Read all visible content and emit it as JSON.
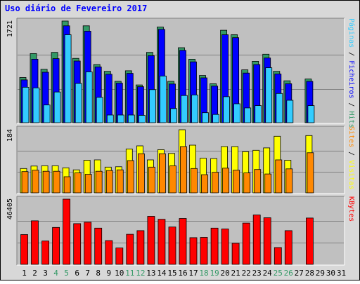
{
  "chart_data": {
    "type": "bar",
    "title": "Uso diário de Fevereiro 2017",
    "days": [
      "1",
      "2",
      "3",
      "4",
      "5",
      "6",
      "7",
      "8",
      "9",
      "10",
      "11",
      "12",
      "13",
      "14",
      "15",
      "16",
      "17",
      "18",
      "19",
      "20",
      "21",
      "22",
      "23",
      "24",
      "25",
      "26",
      "27",
      "28",
      "29",
      "30",
      "31"
    ],
    "weekend_days": [
      "4",
      "5",
      "11",
      "12",
      "18",
      "19",
      "25",
      "26"
    ],
    "colors": {
      "title": "#0000ff",
      "weekday_label": "#000000",
      "weekend_label": "#339966",
      "hits": "#339966",
      "files": "#0000ff",
      "pages": "#33ccff",
      "visits": "#ffff00",
      "sites": "#ff8800",
      "kbytes": "#ff0000",
      "plot_bg": "#c0c0c0",
      "frame_bg": "#d8d8d8"
    },
    "panels": [
      {
        "id": "top",
        "max_label": "1721",
        "ylim": [
          0,
          1721
        ],
        "legend": [
          {
            "text": "Páginas",
            "color": "#33ccff"
          },
          {
            "text": " / ",
            "color": "#000000"
          },
          {
            "text": "Ficheiros",
            "color": "#0000ff"
          },
          {
            "text": " / ",
            "color": "#000000"
          },
          {
            "text": "Hits",
            "color": "#339966"
          }
        ],
        "series": [
          {
            "name": "Hits",
            "color": "#339966",
            "values": [
              765,
              1170,
              905,
              1190,
              1721,
              1090,
              1640,
              985,
              870,
              700,
              880,
              640,
              1190,
              1620,
              700,
              1270,
              1075,
              800,
              660,
              1565,
              1490,
              895,
              1040,
              1160,
              870,
              710,
              0,
              740,
              0,
              0,
              0
            ]
          },
          {
            "name": "Ficheiros",
            "color": "#0000ff",
            "values": [
              725,
              1075,
              855,
              1085,
              1640,
              1045,
              1550,
              945,
              820,
              670,
              835,
              610,
              1135,
              1580,
              655,
              1225,
              1030,
              760,
              620,
              1490,
              1440,
              840,
              985,
              1095,
              825,
              660,
              0,
              700,
              0,
              0,
              0
            ]
          },
          {
            "name": "Páginas",
            "color": "#33ccff",
            "values": [
              600,
              590,
              300,
              520,
              1490,
              665,
              860,
              430,
              130,
              130,
              130,
              125,
              560,
              790,
              240,
              460,
              470,
              170,
              140,
              440,
              320,
              250,
              290,
              930,
              495,
              380,
              0,
              290,
              0,
              0,
              0
            ]
          }
        ]
      },
      {
        "id": "mid",
        "max_label": "184",
        "ylim": [
          0,
          184
        ],
        "legend": [
          {
            "text": "Sites",
            "color": "#ff8800"
          },
          {
            "text": " / ",
            "color": "#000000"
          },
          {
            "text": "Visitas",
            "color": "#ffff00"
          }
        ],
        "series": [
          {
            "name": "Visitas",
            "color": "#ffff00",
            "values": [
              71,
              78,
              79,
              79,
              73,
              67,
              95,
              96,
              75,
              76,
              128,
              137,
              96,
              126,
              115,
              184,
              139,
              101,
              100,
              135,
              135,
              120,
              124,
              131,
              165,
              95,
              0,
              167,
              0,
              0,
              0
            ]
          },
          {
            "name": "Sites",
            "color": "#ff8800",
            "values": [
              62,
              66,
              63,
              63,
              47,
              58,
              54,
              63,
              65,
              67,
              94,
              114,
              75,
              114,
              79,
              135,
              71,
              53,
              60,
              72,
              66,
              58,
              68,
              55,
              96,
              70,
              0,
              117,
              0,
              0,
              0
            ]
          }
        ]
      },
      {
        "id": "bot",
        "max_label": "46405",
        "ylim": [
          0,
          46405
        ],
        "legend": [
          {
            "text": "KBytes",
            "color": "#ff0000"
          }
        ],
        "series": [
          {
            "name": "KBytes",
            "color": "#ff0000",
            "values": [
              21200,
              31000,
              16600,
              26300,
              46405,
              29000,
              30000,
              25800,
              16900,
              11700,
              21400,
              24000,
              34200,
              32100,
              26600,
              32700,
              19000,
              19200,
              25800,
              25200,
              15000,
              29400,
              35200,
              33200,
              12000,
              24000,
              0,
              33000,
              0,
              0,
              0
            ]
          }
        ]
      }
    ]
  }
}
